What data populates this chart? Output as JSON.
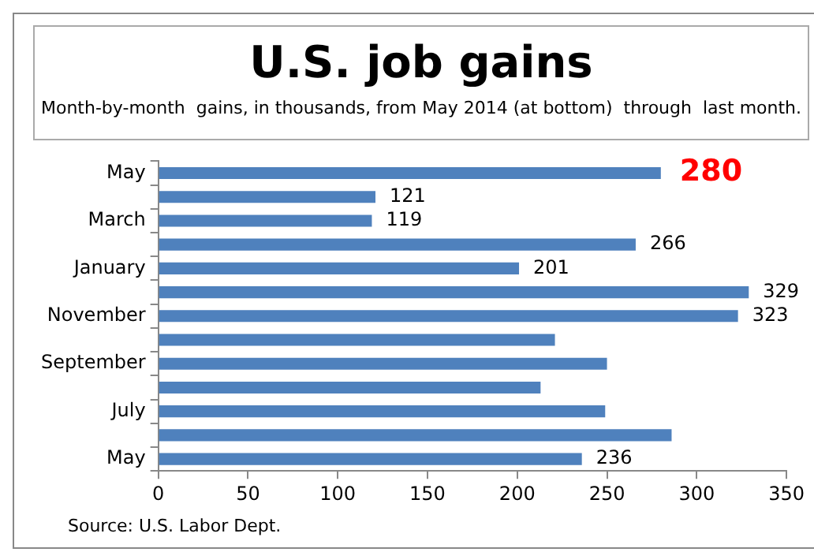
{
  "chart_data": {
    "type": "bar",
    "orientation": "horizontal",
    "title": "U.S. job gains",
    "subtitle": "Month-by-month  gains, in thousands, from May 2014 (at bottom)  through  last month.",
    "categories": [
      "May",
      null,
      "March",
      null,
      "January",
      null,
      "November",
      null,
      "September",
      null,
      "July",
      null,
      "May"
    ],
    "values": [
      280,
      121,
      119,
      266,
      201,
      329,
      323,
      221,
      250,
      213,
      249,
      286,
      236
    ],
    "value_labels": [
      "280",
      "121",
      "119",
      "266",
      "201",
      "329",
      "323",
      null,
      null,
      null,
      null,
      null,
      "236"
    ],
    "color": "#4f81bd",
    "xlim": [
      0,
      350
    ],
    "xticks": [
      0,
      50,
      100,
      150,
      200,
      250,
      300,
      350
    ],
    "grid": false,
    "legend": false,
    "annotations": [
      "Source: U.S. Labor Dept."
    ]
  }
}
